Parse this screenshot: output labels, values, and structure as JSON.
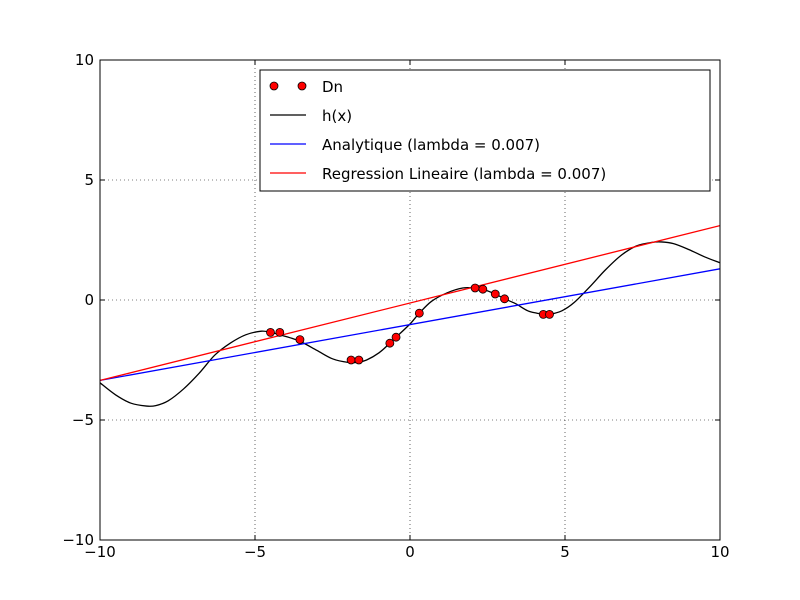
{
  "chart_data": {
    "type": "line",
    "title": "",
    "xlabel": "",
    "ylabel": "",
    "xlim": [
      -10,
      10
    ],
    "ylim": [
      -10,
      10
    ],
    "xticks": [
      -10,
      -5,
      0,
      5,
      10
    ],
    "yticks": [
      -10,
      -5,
      0,
      5,
      10
    ],
    "xtick_labels": [
      "−10",
      "−5",
      "0",
      "5",
      "10"
    ],
    "ytick_labels": [
      "−10",
      "−5",
      "0",
      "5",
      "10"
    ],
    "grid": true,
    "legend_position": "top-right",
    "series": [
      {
        "name": "Dn",
        "kind": "scatter",
        "color": "#ff0000",
        "x": [
          -4.5,
          -4.2,
          -3.55,
          -1.9,
          -1.65,
          -0.65,
          -0.45,
          0.3,
          2.1,
          2.35,
          2.75,
          3.05,
          4.3,
          4.5
        ],
        "y": [
          -1.35,
          -1.35,
          -1.65,
          -2.5,
          -2.5,
          -1.8,
          -1.55,
          -0.55,
          0.5,
          0.45,
          0.25,
          0.05,
          -0.6,
          -0.6
        ]
      },
      {
        "name": "h(x)",
        "kind": "line",
        "color": "#000000",
        "x": [
          -10,
          -9.5,
          -9.0,
          -8.5,
          -8.2,
          -7.8,
          -7.3,
          -6.8,
          -6.3,
          -5.8,
          -5.3,
          -4.8,
          -4.5,
          -4.2,
          -3.8,
          -3.5,
          -3.0,
          -2.5,
          -2.0,
          -1.7,
          -1.4,
          -1.0,
          -0.65,
          -0.45,
          0.0,
          0.3,
          0.7,
          1.2,
          1.7,
          2.1,
          2.35,
          2.75,
          3.05,
          3.4,
          3.8,
          4.1,
          4.3,
          4.5,
          4.9,
          5.3,
          5.8,
          6.3,
          6.8,
          7.3,
          7.8,
          8.1,
          8.5,
          9.0,
          9.5,
          10.0
        ],
        "y": [
          -3.45,
          -3.95,
          -4.3,
          -4.42,
          -4.4,
          -4.2,
          -3.7,
          -3.05,
          -2.3,
          -1.8,
          -1.45,
          -1.3,
          -1.35,
          -1.45,
          -1.6,
          -1.75,
          -2.1,
          -2.45,
          -2.6,
          -2.6,
          -2.5,
          -2.2,
          -1.8,
          -1.55,
          -1.0,
          -0.55,
          -0.05,
          0.3,
          0.5,
          0.5,
          0.45,
          0.25,
          0.05,
          -0.15,
          -0.45,
          -0.55,
          -0.6,
          -0.6,
          -0.45,
          -0.1,
          0.55,
          1.25,
          1.85,
          2.25,
          2.4,
          2.42,
          2.35,
          2.1,
          1.8,
          1.55
        ]
      },
      {
        "name": "Analytique (lambda = 0.007)",
        "kind": "line",
        "color": "#0000ff",
        "x": [
          -10,
          10
        ],
        "y": [
          -3.35,
          1.3
        ]
      },
      {
        "name": "Regression Lineaire (lambda = 0.007)",
        "kind": "line",
        "color": "#ff0000",
        "x": [
          -10,
          10
        ],
        "y": [
          -3.35,
          3.1
        ]
      }
    ]
  }
}
